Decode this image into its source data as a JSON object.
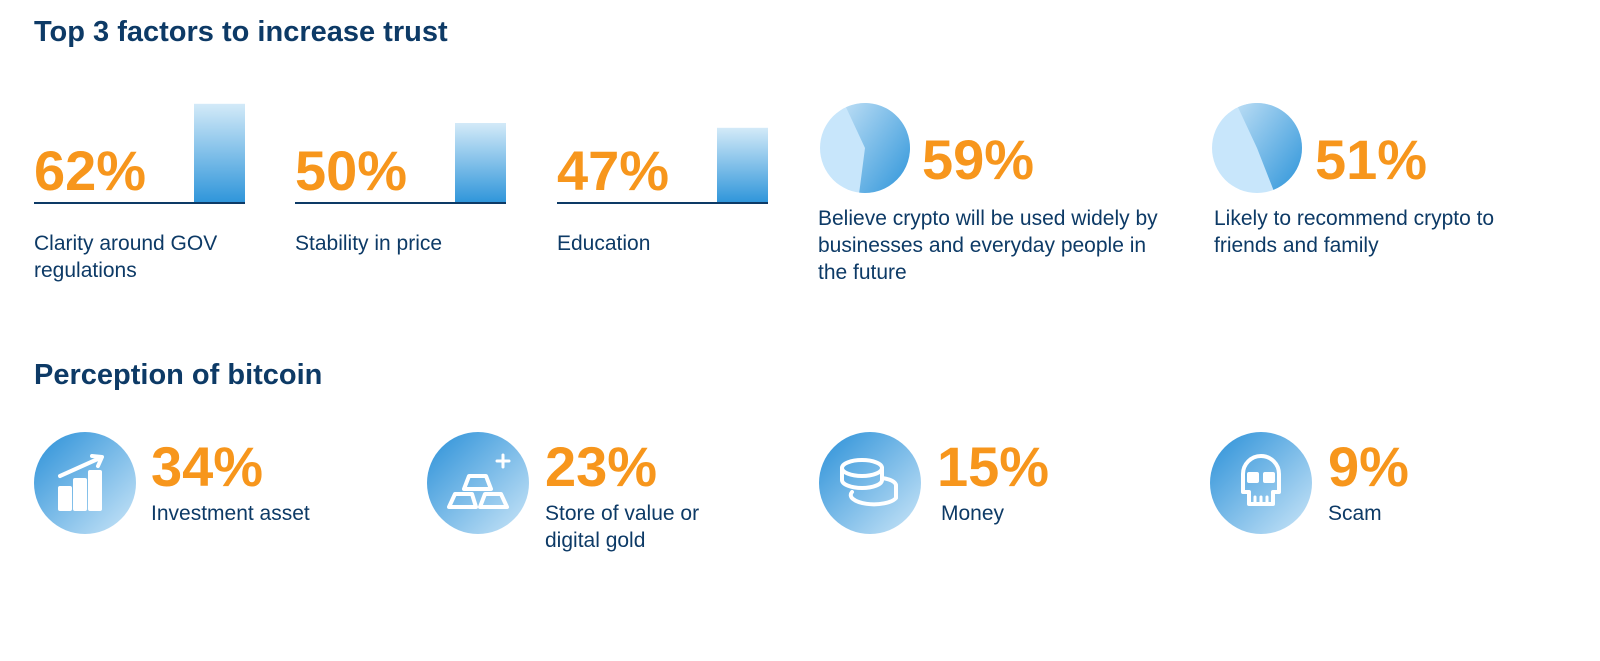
{
  "trust": {
    "title": "Top 3 factors to increase trust",
    "factors": [
      {
        "value": 62,
        "value_label": "62%",
        "text": "Clarity around GOV regulations"
      },
      {
        "value": 50,
        "value_label": "50%",
        "text": "Stability in price"
      },
      {
        "value": 47,
        "value_label": "47%",
        "text": "Education"
      }
    ],
    "stats": [
      {
        "value": 59,
        "value_label": "59%",
        "text": "Believe crypto will be used widely by businesses and everyday people in the future"
      },
      {
        "value": 51,
        "value_label": "51%",
        "text": "Likely to recommend crypto to friends and family"
      }
    ]
  },
  "perception": {
    "title": "Perception of bitcoin",
    "items": [
      {
        "percent": "34%",
        "text": "Investment asset"
      },
      {
        "percent": "23%",
        "text": "Store of value or digital gold"
      },
      {
        "percent": "15%",
        "text": "Money"
      },
      {
        "percent": "9%",
        "text": "Scam"
      }
    ]
  }
}
